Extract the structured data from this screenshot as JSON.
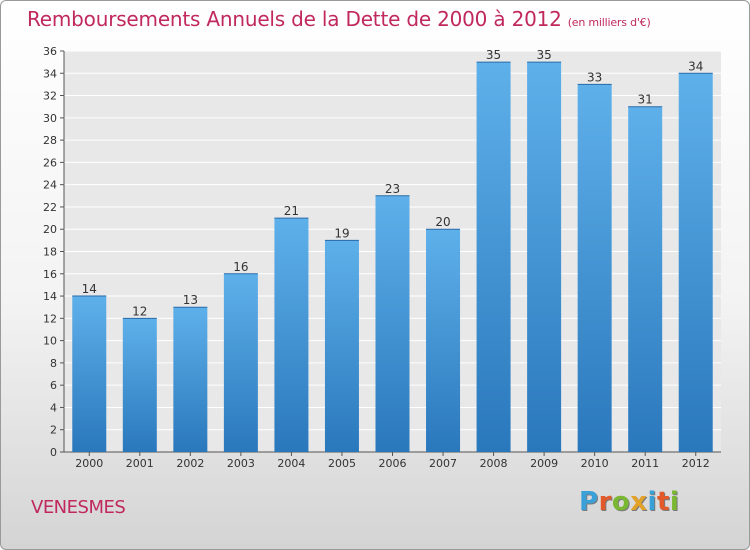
{
  "header": {
    "title": "Remboursements Annuels de la Dette de 2000 à 2012",
    "unit": "(en milliers d'€)"
  },
  "footer": {
    "commune": "VENESMES",
    "logo_letters": [
      "P",
      "r",
      "o",
      "x",
      "i",
      "t",
      "i"
    ],
    "logo_colors": [
      "#3aa0d8",
      "#e25a2a",
      "#7ab833",
      "#e2a22a",
      "#3aa0d8",
      "#e25a2a",
      "#7ab833"
    ]
  },
  "chart_data": {
    "type": "bar",
    "categories": [
      "2000",
      "2001",
      "2002",
      "2003",
      "2004",
      "2005",
      "2006",
      "2007",
      "2008",
      "2009",
      "2010",
      "2011",
      "2012"
    ],
    "values": [
      14,
      12,
      13,
      16,
      21,
      19,
      23,
      20,
      35,
      35,
      33,
      31,
      34
    ],
    "title": "Remboursements Annuels de la Dette de 2000 à 2012",
    "ylim": [
      0,
      36
    ],
    "yticks": [
      0,
      2,
      4,
      6,
      8,
      10,
      12,
      14,
      16,
      18,
      20,
      22,
      24,
      26,
      28,
      30,
      32,
      34,
      36
    ],
    "grid": true,
    "colors": {
      "bar_light": "#5eb0ea",
      "bar_dark": "#2a78bc",
      "plot_bg": "#e8e8e8",
      "grid": "#ffffff"
    }
  }
}
